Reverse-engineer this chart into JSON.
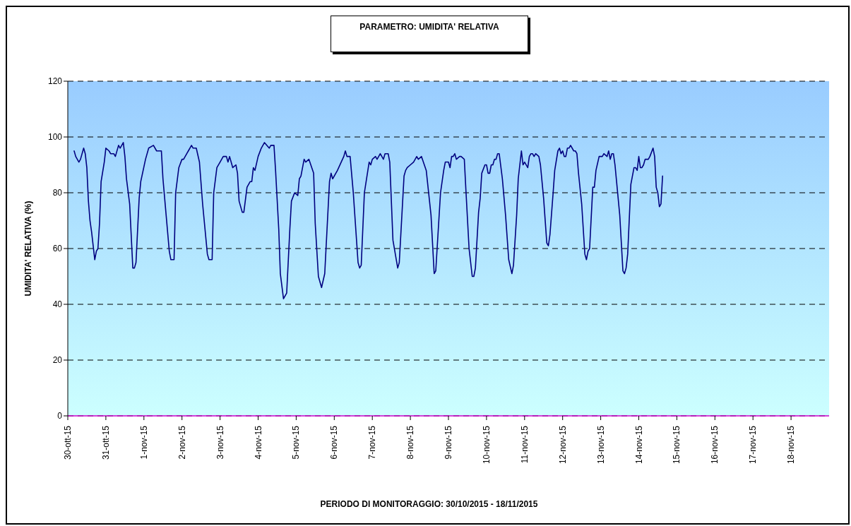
{
  "chart_data": {
    "type": "line",
    "title": "PARAMETRO: UMIDITA' RELATIVA",
    "xlabel": "PERIODO DI MONITORAGGIO: 30/10/2015 - 18/11/2015",
    "ylabel": "UMIDITA' RELATIVA (%)",
    "xlim": [
      "2015-10-30",
      "2015-11-19"
    ],
    "xticks": [
      {
        "value": "2015-10-30",
        "label": "30-ott-15"
      },
      {
        "value": "2015-10-31",
        "label": "31-ott-15"
      },
      {
        "value": "2015-11-01",
        "label": "1-nov-15"
      },
      {
        "value": "2015-11-02",
        "label": "2-nov-15"
      },
      {
        "value": "2015-11-03",
        "label": "3-nov-15"
      },
      {
        "value": "2015-11-04",
        "label": "4-nov-15"
      },
      {
        "value": "2015-11-05",
        "label": "5-nov-15"
      },
      {
        "value": "2015-11-06",
        "label": "6-nov-15"
      },
      {
        "value": "2015-11-07",
        "label": "7-nov-15"
      },
      {
        "value": "2015-11-08",
        "label": "8-nov-15"
      },
      {
        "value": "2015-11-09",
        "label": "9-nov-15"
      },
      {
        "value": "2015-11-10",
        "label": "10-nov-15"
      },
      {
        "value": "2015-11-11",
        "label": "11-nov-15"
      },
      {
        "value": "2015-11-12",
        "label": "12-nov-15"
      },
      {
        "value": "2015-11-13",
        "label": "13-nov-15"
      },
      {
        "value": "2015-11-14",
        "label": "14-nov-15"
      },
      {
        "value": "2015-11-15",
        "label": "15-nov-15"
      },
      {
        "value": "2015-11-16",
        "label": "16-nov-15"
      },
      {
        "value": "2015-11-17",
        "label": "17-nov-15"
      },
      {
        "value": "2015-11-18",
        "label": "18-nov-15"
      }
    ],
    "ylim": [
      0,
      120
    ],
    "yticks": [
      0,
      20,
      40,
      60,
      80,
      100,
      120
    ],
    "grid": "y",
    "marker": "none",
    "line_style": "solid",
    "series": [
      {
        "color": "#000080",
        "x": [
          "2015-10-30T04:00",
          "2015-10-30T05:00",
          "2015-10-30T07:00",
          "2015-10-30T08:00",
          "2015-10-30T10:00",
          "2015-10-30T11:00",
          "2015-10-30T12:00",
          "2015-10-30T13:00",
          "2015-10-30T14:00",
          "2015-10-30T15:00",
          "2015-10-30T17:00",
          "2015-10-30T18:00",
          "2015-10-30T19:00",
          "2015-10-30T20:00",
          "2015-10-30T21:00",
          "2015-10-30T23:00",
          "2015-10-31T00:00",
          "2015-10-31T02:00",
          "2015-10-31T03:00",
          "2015-10-31T05:00",
          "2015-10-31T06:00",
          "2015-10-31T08:00",
          "2015-10-31T09:00",
          "2015-10-31T11:00",
          "2015-10-31T12:00",
          "2015-10-31T13:00",
          "2015-10-31T15:00",
          "2015-10-31T17:00",
          "2015-10-31T18:00",
          "2015-10-31T19:00",
          "2015-10-31T21:00",
          "2015-10-31T22:00",
          "2015-11-01T01:00",
          "2015-11-01T03:00",
          "2015-11-01T06:00",
          "2015-11-01T08:00",
          "2015-11-01T11:00",
          "2015-11-01T12:00",
          "2015-11-01T14:00",
          "2015-11-01T16:00",
          "2015-11-01T17:00",
          "2015-11-01T19:00",
          "2015-11-01T20:00",
          "2015-11-01T22:00",
          "2015-11-02T00:00",
          "2015-11-02T01:00",
          "2015-11-02T03:00",
          "2015-11-02T04:00",
          "2015-11-02T06:00",
          "2015-11-02T07:00",
          "2015-11-02T09:00",
          "2015-11-02T11:00",
          "2015-11-02T13:00",
          "2015-11-02T16:00",
          "2015-11-02T17:00",
          "2015-11-02T19:00",
          "2015-11-02T20:00",
          "2015-11-02T22:00",
          "2015-11-03T00:00",
          "2015-11-03T01:00",
          "2015-11-03T02:00",
          "2015-11-03T04:00",
          "2015-11-03T05:00",
          "2015-11-03T06:00",
          "2015-11-03T08:00",
          "2015-11-03T10:00",
          "2015-11-03T11:00",
          "2015-11-03T12:00",
          "2015-11-03T14:00",
          "2015-11-03T15:00",
          "2015-11-03T17:00",
          "2015-11-03T19:00",
          "2015-11-03T20:00",
          "2015-11-03T21:00",
          "2015-11-03T22:00",
          "2015-11-04T00:00",
          "2015-11-04T02:00",
          "2015-11-04T04:00",
          "2015-11-04T07:00",
          "2015-11-04T08:00",
          "2015-11-04T10:00",
          "2015-11-04T11:00",
          "2015-11-04T13:00",
          "2015-11-04T14:00",
          "2015-11-04T16:00",
          "2015-11-04T18:00",
          "2015-11-04T20:00",
          "2015-11-04T21:00",
          "2015-11-04T23:00",
          "2015-11-05T01:00",
          "2015-11-05T02:00",
          "2015-11-05T03:00",
          "2015-11-05T05:00",
          "2015-11-05T06:00",
          "2015-11-05T08:00",
          "2015-11-05T11:00",
          "2015-11-05T12:00",
          "2015-11-05T14:00",
          "2015-11-05T16:00",
          "2015-11-05T18:00",
          "2015-11-05T21:00",
          "2015-11-05T22:00",
          "2015-11-05T23:00",
          "2015-11-06T02:00",
          "2015-11-06T06:00",
          "2015-11-06T07:00",
          "2015-11-06T08:00",
          "2015-11-06T10:00",
          "2015-11-06T12:00",
          "2015-11-06T15:00",
          "2015-11-06T16:00",
          "2015-11-06T17:00",
          "2015-11-06T19:00",
          "2015-11-06T22:00",
          "2015-11-06T23:00",
          "2015-11-07T00:00",
          "2015-11-07T02:00",
          "2015-11-07T03:00",
          "2015-11-07T05:00",
          "2015-11-07T07:00",
          "2015-11-07T08:00",
          "2015-11-07T10:00",
          "2015-11-07T11:00",
          "2015-11-07T13:00",
          "2015-11-07T16:00",
          "2015-11-07T17:00",
          "2015-11-07T20:00",
          "2015-11-07T21:00",
          "2015-11-07T22:00",
          "2015-11-08T00:00",
          "2015-11-08T02:00",
          "2015-11-08T04:00",
          "2015-11-08T05:00",
          "2015-11-08T07:00",
          "2015-11-08T10:00",
          "2015-11-08T13:00",
          "2015-11-08T15:00",
          "2015-11-08T16:00",
          "2015-11-08T19:00",
          "2015-11-08T21:00",
          "2015-11-08T22:00",
          "2015-11-09T00:00",
          "2015-11-09T01:00",
          "2015-11-09T02:00",
          "2015-11-09T03:00",
          "2015-11-09T04:00",
          "2015-11-09T05:00",
          "2015-11-09T07:00",
          "2015-11-09T08:00",
          "2015-11-09T10:00",
          "2015-11-09T11:00",
          "2015-11-09T13:00",
          "2015-11-09T15:00",
          "2015-11-09T16:00",
          "2015-11-09T17:00",
          "2015-11-09T19:00",
          "2015-11-09T20:00",
          "2015-11-09T21:00",
          "2015-11-09T23:00",
          "2015-11-10T00:00",
          "2015-11-10T01:00",
          "2015-11-10T02:00",
          "2015-11-10T03:00",
          "2015-11-10T04:00",
          "2015-11-10T05:00",
          "2015-11-10T06:00",
          "2015-11-10T07:00",
          "2015-11-10T08:00",
          "2015-11-10T10:00",
          "2015-11-10T12:00",
          "2015-11-10T14:00",
          "2015-11-10T16:00",
          "2015-11-10T17:00",
          "2015-11-10T19:00",
          "2015-11-10T20:00",
          "2015-11-10T22:00",
          "2015-11-10T23:00",
          "2015-11-11T00:00",
          "2015-11-11T02:00",
          "2015-11-11T03:00",
          "2015-11-11T04:00",
          "2015-11-11T05:00",
          "2015-11-11T06:00",
          "2015-11-11T07:00",
          "2015-11-11T09:00",
          "2015-11-11T10:00",
          "2015-11-11T12:00",
          "2015-11-11T14:00",
          "2015-11-11T15:00",
          "2015-11-11T16:00",
          "2015-11-11T18:00",
          "2015-11-11T19:00",
          "2015-11-11T21:00",
          "2015-11-11T22:00",
          "2015-11-11T23:00",
          "2015-11-12T00:00",
          "2015-11-12T01:00",
          "2015-11-12T02:00",
          "2015-11-12T03:00",
          "2015-11-12T04:00",
          "2015-11-12T05:00",
          "2015-11-12T07:00",
          "2015-11-12T08:00",
          "2015-11-12T09:00",
          "2015-11-12T10:00",
          "2015-11-12T12:00",
          "2015-11-12T14:00",
          "2015-11-12T15:00",
          "2015-11-12T16:00",
          "2015-11-12T17:00",
          "2015-11-12T19:00",
          "2015-11-12T20:00",
          "2015-11-12T21:00",
          "2015-11-12T23:00",
          "2015-11-13T01:00",
          "2015-11-13T02:00",
          "2015-11-13T04:00",
          "2015-11-13T05:00",
          "2015-11-13T06:00",
          "2015-11-13T07:00",
          "2015-11-13T08:00",
          "2015-11-13T09:00",
          "2015-11-13T10:00",
          "2015-11-13T12:00",
          "2015-11-13T14:00",
          "2015-11-13T15:00",
          "2015-11-13T16:00",
          "2015-11-13T17:00",
          "2015-11-13T19:00",
          "2015-11-13T21:00",
          "2015-11-13T22:00",
          "2015-11-13T23:00",
          "2015-11-14T00:00",
          "2015-11-14T01:00",
          "2015-11-14T02:00",
          "2015-11-14T03:00",
          "2015-11-14T04:00",
          "2015-11-14T06:00",
          "2015-11-14T07:00",
          "2015-11-14T09:00",
          "2015-11-14T10:00",
          "2015-11-14T11:00",
          "2015-11-14T12:00",
          "2015-11-14T13:00",
          "2015-11-14T14:00",
          "2015-11-14T15:00"
        ],
        "values": [
          95,
          93,
          91,
          92,
          96,
          94,
          89,
          77,
          70,
          66,
          56,
          59,
          60,
          69,
          84,
          91,
          96,
          95,
          94,
          94,
          93,
          97,
          96,
          98,
          93,
          85,
          76,
          53,
          53,
          55,
          78,
          84,
          92,
          96,
          97,
          95,
          95,
          85,
          72,
          59,
          56,
          56,
          80,
          89,
          92,
          92,
          94,
          95,
          97,
          96,
          96,
          91,
          76,
          58,
          56,
          56,
          80,
          89,
          91,
          92,
          93,
          93,
          91,
          93,
          89,
          90,
          87,
          77,
          73,
          73,
          82,
          84,
          84,
          89,
          88,
          93,
          96,
          98,
          96,
          97,
          97,
          88,
          67,
          51,
          42,
          44,
          67,
          77,
          80,
          79,
          85,
          86,
          92,
          91,
          92,
          87,
          69,
          50,
          46,
          51,
          84,
          87,
          85,
          88,
          93,
          95,
          93,
          93,
          80,
          55,
          53,
          54,
          80,
          91,
          90,
          92,
          93,
          92,
          94,
          92,
          94,
          94,
          91,
          63,
          53,
          55,
          86,
          88,
          89,
          90,
          91,
          93,
          92,
          93,
          88,
          72,
          51,
          52,
          80,
          88,
          91,
          91,
          89,
          93,
          93,
          94,
          92,
          93,
          93,
          92,
          81,
          60,
          50,
          50,
          53,
          73,
          78,
          87,
          90,
          90,
          87,
          87,
          90,
          90,
          92,
          92,
          94,
          94,
          85,
          72,
          56,
          51,
          54,
          72,
          85,
          95,
          90,
          91,
          89,
          93,
          94,
          94,
          93,
          94,
          93,
          90,
          78,
          62,
          61,
          65,
          80,
          88,
          95,
          96,
          94,
          95,
          93,
          93,
          96,
          96,
          97,
          95,
          95,
          94,
          87,
          76,
          58,
          56,
          59,
          60,
          82,
          82,
          88,
          93,
          93,
          94,
          93,
          95,
          92,
          94,
          94,
          90,
          84,
          72,
          52,
          51,
          53,
          58,
          83,
          89,
          89,
          88,
          93,
          89,
          89,
          90,
          92,
          92,
          93,
          96,
          93,
          82,
          80,
          75,
          76,
          86
        ]
      }
    ]
  }
}
